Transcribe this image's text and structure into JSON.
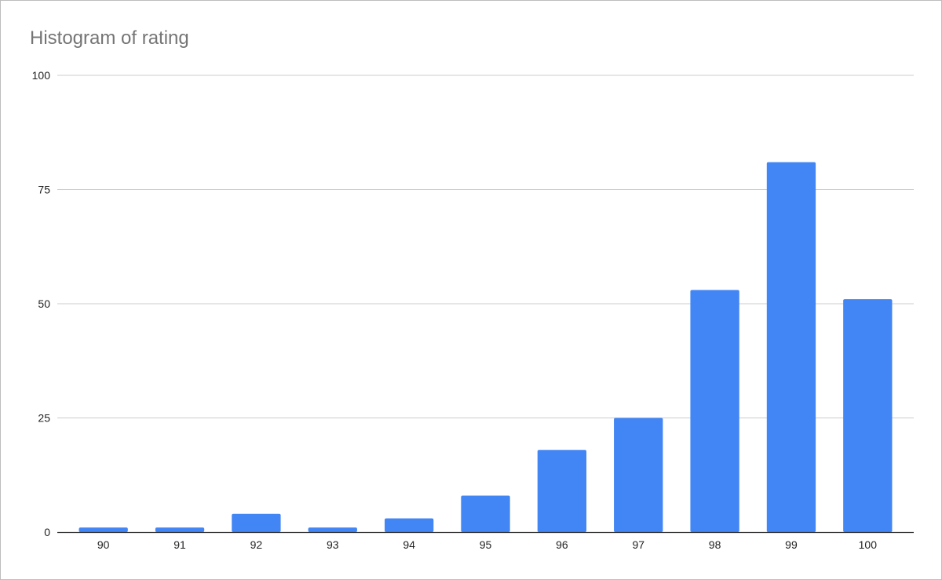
{
  "chart_data": {
    "type": "bar",
    "title": "Histogram of rating",
    "xlabel": "",
    "ylabel": "",
    "categories": [
      "90",
      "91",
      "92",
      "93",
      "94",
      "95",
      "96",
      "97",
      "98",
      "99",
      "100"
    ],
    "values": [
      1,
      1,
      4,
      1,
      3,
      8,
      18,
      25,
      53,
      81,
      51
    ],
    "ylim": [
      0,
      100
    ],
    "yticks": [
      0,
      25,
      50,
      75,
      100
    ],
    "grid": true,
    "legend": "none",
    "colors": {
      "bar": "#4285f4",
      "grid": "#cccccc",
      "axis": "#333333"
    }
  }
}
